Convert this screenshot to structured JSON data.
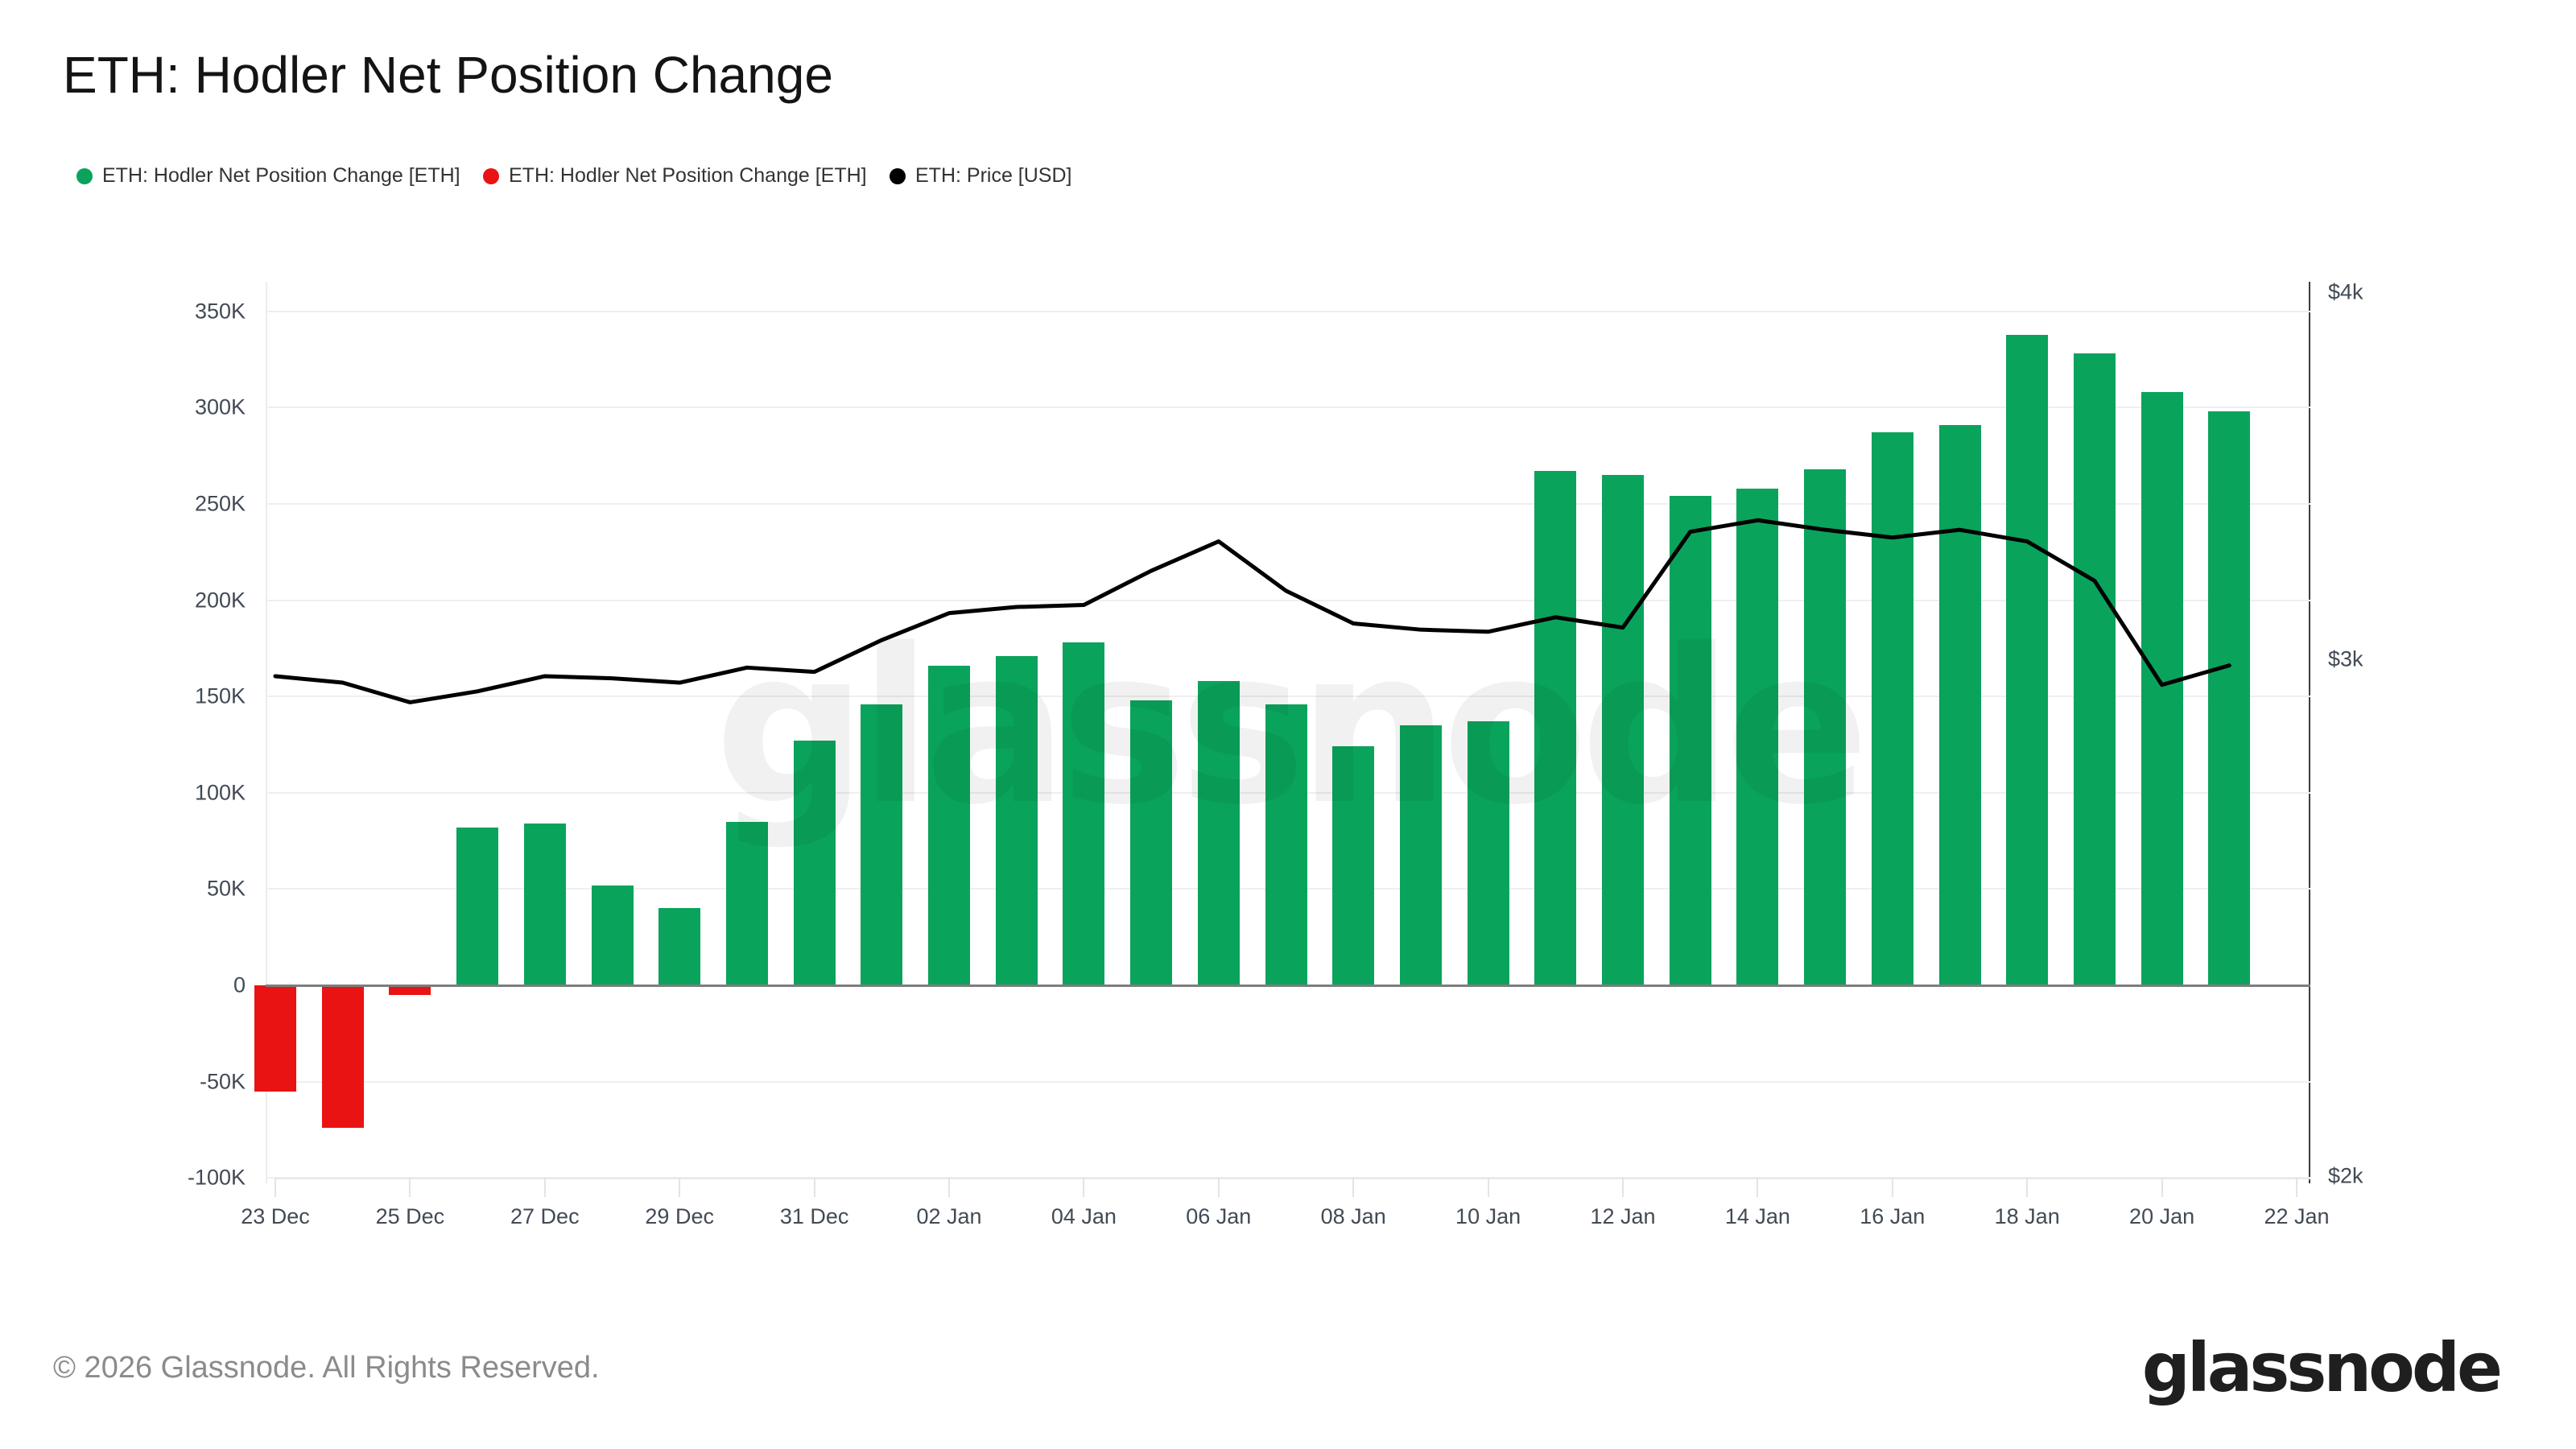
{
  "title": "ETH: Hodler Net Position Change",
  "watermark": "glassnode",
  "legend": [
    {
      "label": "ETH: Hodler Net Position Change [ETH]",
      "color": "#0aa35c"
    },
    {
      "label": "ETH: Hodler Net Position Change [ETH]",
      "color": "#ea1313"
    },
    {
      "label": "ETH: Price [USD]",
      "color": "#000000"
    }
  ],
  "footer": {
    "copyright": "© 2026 Glassnode. All Rights Reserved.",
    "logo": "glassnode"
  },
  "chart_data": {
    "type": "bar+line",
    "title": "ETH: Hodler Net Position Change",
    "x": [
      "23 Dec",
      "24 Dec",
      "25 Dec",
      "26 Dec",
      "27 Dec",
      "28 Dec",
      "29 Dec",
      "30 Dec",
      "31 Dec",
      "01 Jan",
      "02 Jan",
      "03 Jan",
      "04 Jan",
      "05 Jan",
      "06 Jan",
      "07 Jan",
      "08 Jan",
      "09 Jan",
      "10 Jan",
      "11 Jan",
      "12 Jan",
      "13 Jan",
      "14 Jan",
      "15 Jan",
      "16 Jan",
      "17 Jan",
      "18 Jan",
      "19 Jan",
      "20 Jan",
      "21 Jan"
    ],
    "series": [
      {
        "name": "ETH: Hodler Net Position Change [ETH]",
        "type": "bar",
        "axis": "left",
        "unit": "ETH",
        "positive_color": "#0aa35c",
        "negative_color": "#ea1313",
        "values": [
          -55000,
          -74000,
          -5000,
          82000,
          84000,
          52000,
          40000,
          85000,
          127000,
          146000,
          166000,
          171000,
          178000,
          148000,
          158000,
          146000,
          124000,
          135000,
          137000,
          267000,
          265000,
          254000,
          258000,
          268000,
          287000,
          291000,
          338000,
          328000,
          308000,
          298000
        ]
      },
      {
        "name": "ETH: Price [USD]",
        "type": "line",
        "axis": "right",
        "unit": "USD",
        "color": "#000000",
        "values": [
          2960,
          2945,
          2900,
          2925,
          2960,
          2955,
          2945,
          2980,
          2970,
          3045,
          3110,
          3125,
          3130,
          3215,
          3290,
          3165,
          3085,
          3070,
          3065,
          3100,
          3075,
          3315,
          3345,
          3320,
          3300,
          3320,
          3290,
          3190,
          2940,
          2985
        ]
      }
    ],
    "left_axis": {
      "scale": "linear",
      "range": [
        -100000,
        350000
      ],
      "tick_labels": [
        "350K",
        "300K",
        "250K",
        "200K",
        "150K",
        "100K",
        "50K",
        "0",
        "-50K",
        "-100K"
      ],
      "tick_values": [
        350000,
        300000,
        250000,
        200000,
        150000,
        100000,
        50000,
        0,
        -50000,
        -100000
      ]
    },
    "right_axis": {
      "scale": "log",
      "range": [
        2000,
        4000
      ],
      "tick_labels": [
        "$4k",
        "$3k",
        "$2k"
      ],
      "tick_values": [
        4000,
        3000,
        2000
      ]
    },
    "x_ticks": [
      "23 Dec",
      "25 Dec",
      "27 Dec",
      "29 Dec",
      "31 Dec",
      "02 Jan",
      "04 Jan",
      "06 Jan",
      "08 Jan",
      "10 Jan",
      "12 Jan",
      "14 Jan",
      "16 Jan",
      "18 Jan",
      "20 Jan",
      "22 Jan"
    ],
    "grid": "horizontal",
    "legend_position": "top-left"
  }
}
